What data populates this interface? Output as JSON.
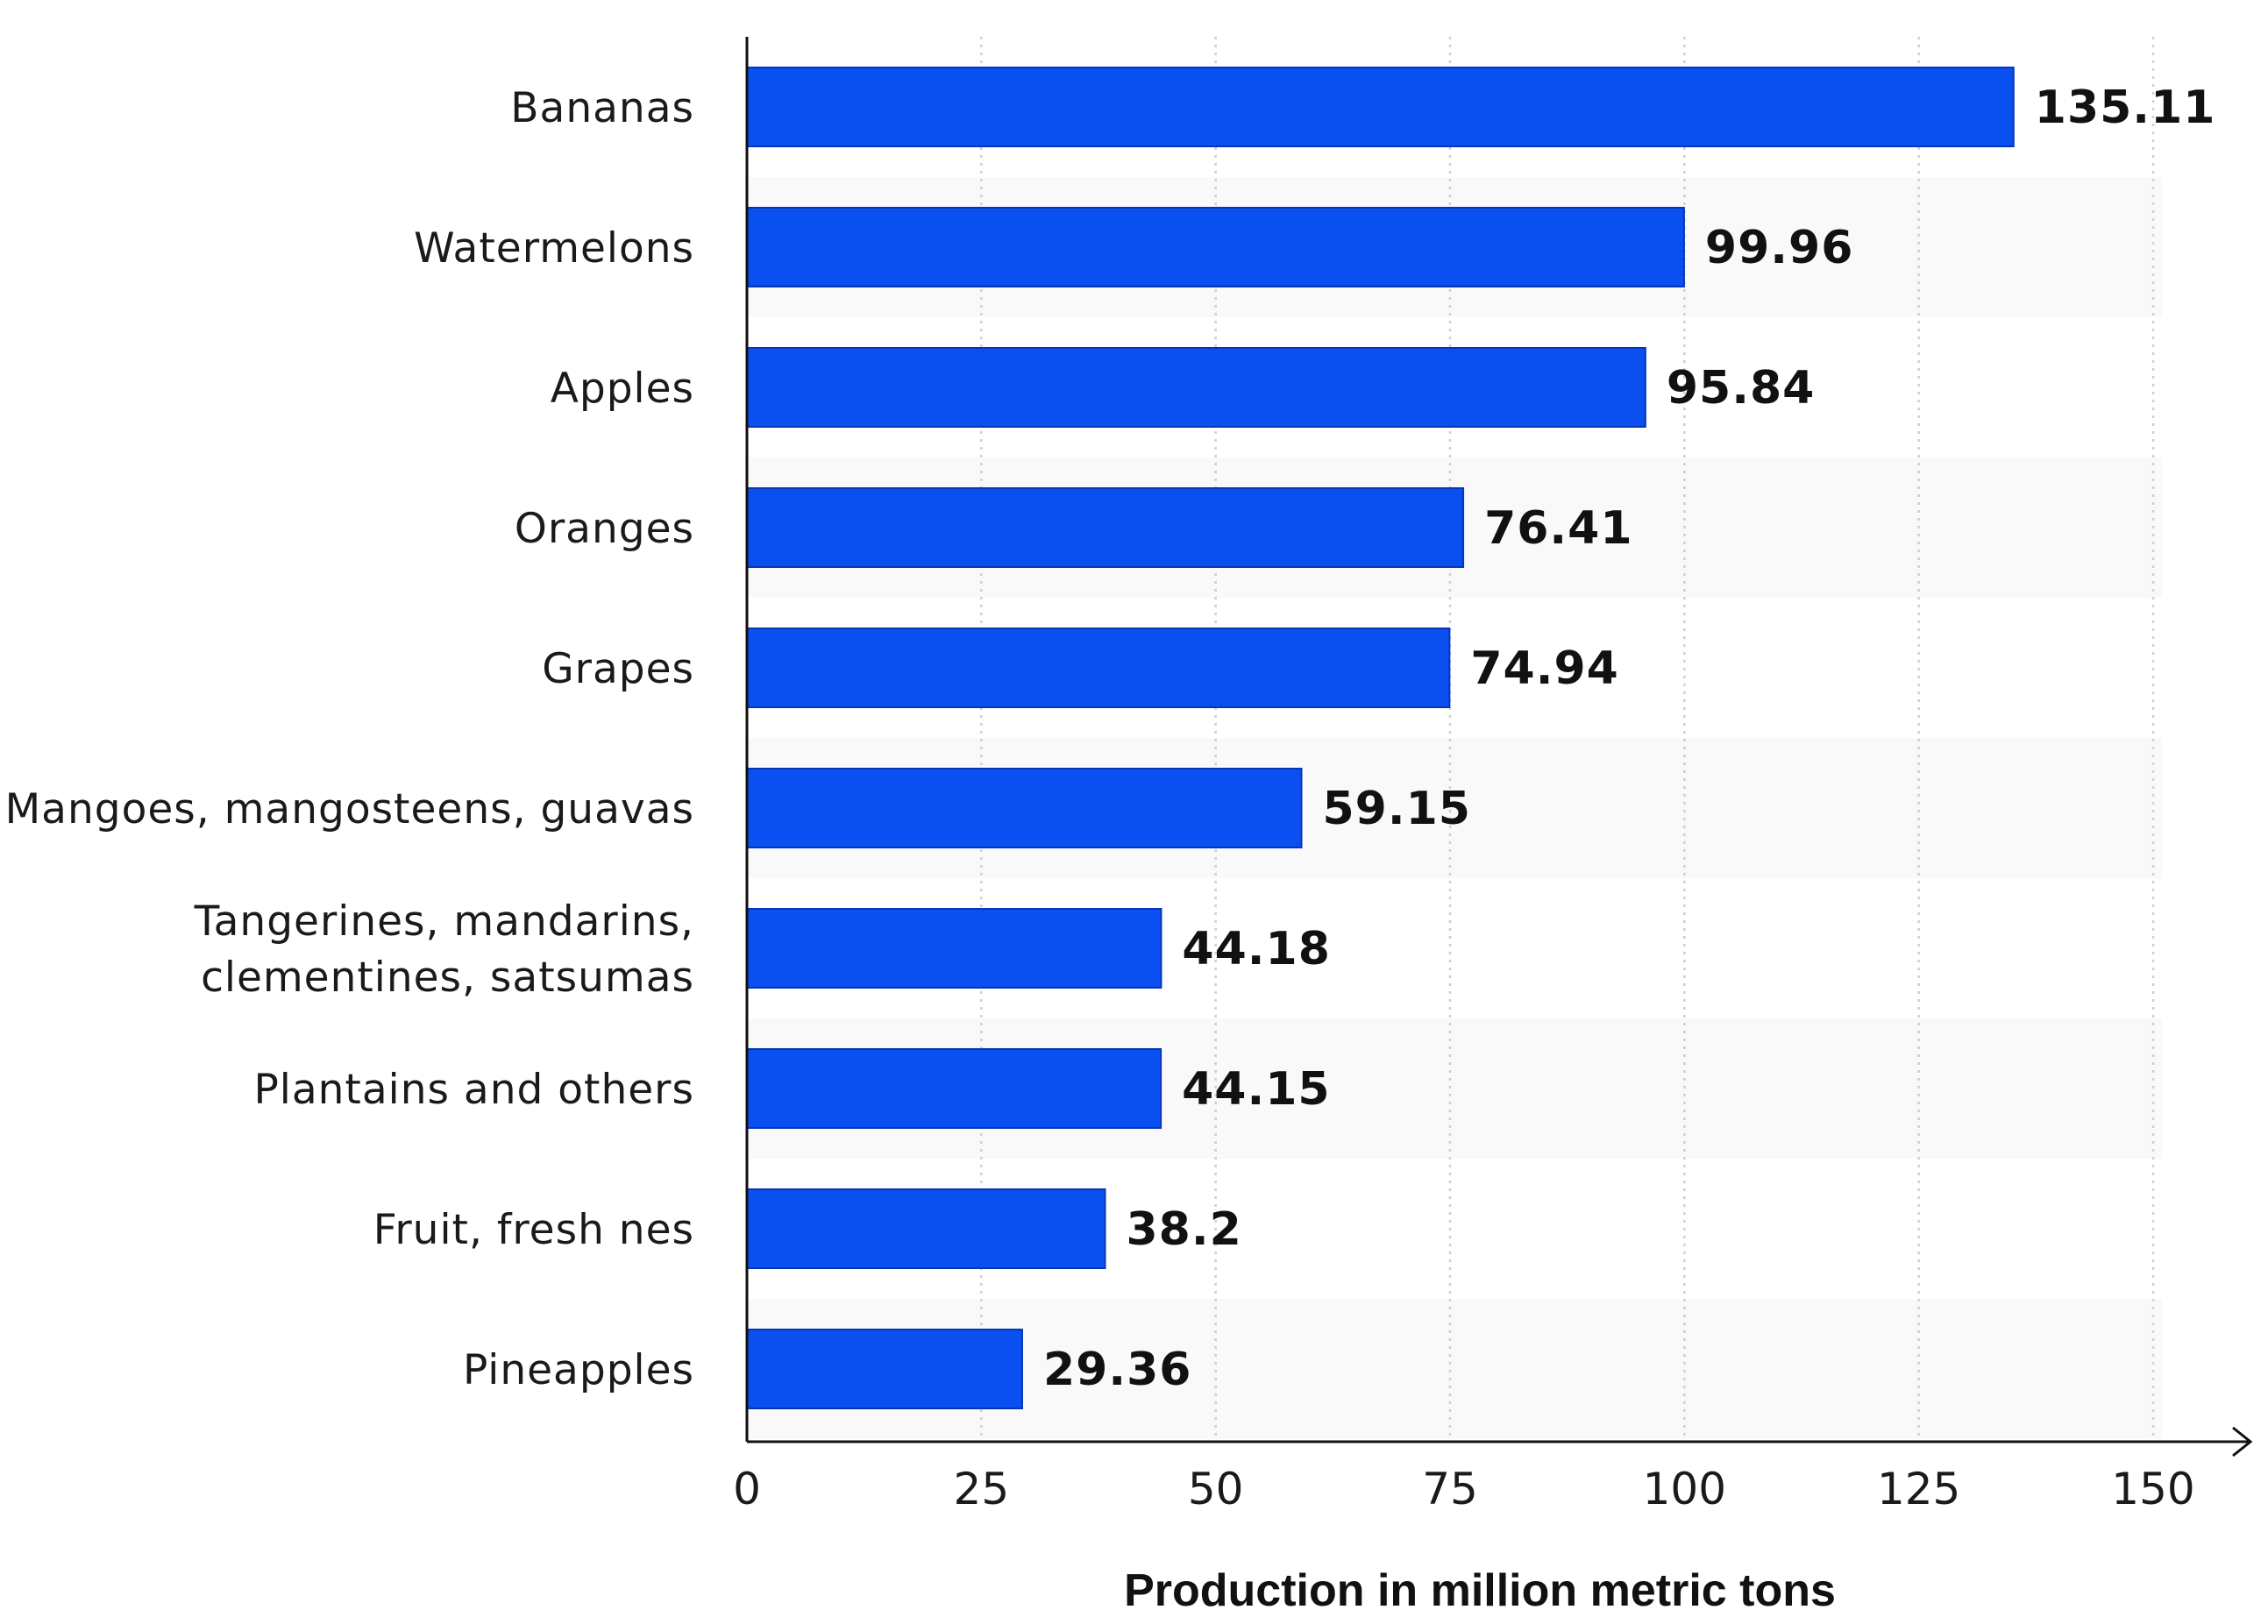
{
  "chart_data": {
    "type": "bar",
    "orientation": "horizontal",
    "title": "",
    "xlabel": "Production in million metric tons",
    "ylabel": "",
    "categories": [
      "Bananas",
      "Watermelons",
      "Apples",
      "Oranges",
      "Grapes",
      "Mangoes, mangosteens, guavas",
      "Tangerines, mandarins, clementines, satsumas",
      "Plantains and others",
      "Fruit, fresh nes",
      "Pineapples"
    ],
    "category_lines": [
      [
        "Bananas"
      ],
      [
        "Watermelons"
      ],
      [
        "Apples"
      ],
      [
        "Oranges"
      ],
      [
        "Grapes"
      ],
      [
        "Mangoes, mangosteens, guavas"
      ],
      [
        "Tangerines, mandarins,",
        "clementines, satsumas"
      ],
      [
        "Plantains and others"
      ],
      [
        "Fruit, fresh nes"
      ],
      [
        "Pineapples"
      ]
    ],
    "values": [
      135.11,
      99.96,
      95.84,
      76.41,
      74.94,
      59.15,
      44.18,
      44.15,
      38.2,
      29.36
    ],
    "value_labels": [
      "135.11",
      "99.96",
      "95.84",
      "76.41",
      "74.94",
      "59.15",
      "44.18",
      "44.15",
      "38.2",
      "29.36"
    ],
    "xlim": [
      0,
      150
    ],
    "xticks": [
      0,
      25,
      50,
      75,
      100,
      125,
      150
    ],
    "xtick_labels": [
      "0",
      "25",
      "50",
      "75",
      "100",
      "125",
      "150"
    ],
    "grid": true,
    "legend": "none",
    "colors": {
      "bar": "#0a4ff0",
      "bar_stroke": "#0636b8",
      "axis": "#111111",
      "grid": "#cfcfcf",
      "band": "#f9f9f9"
    }
  }
}
